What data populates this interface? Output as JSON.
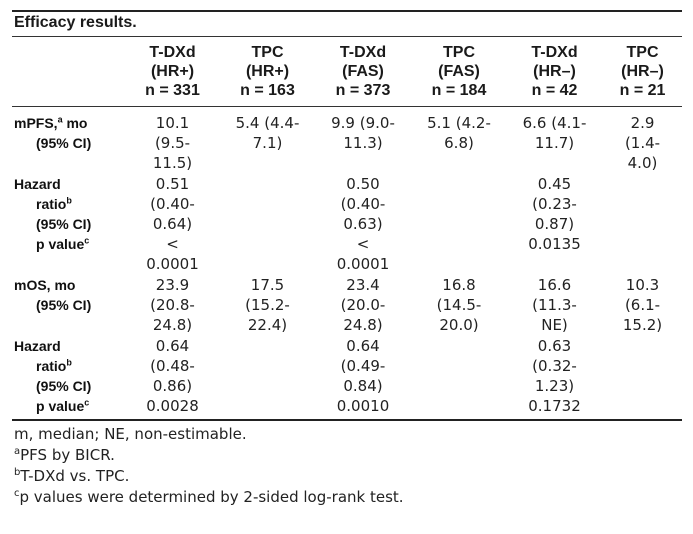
{
  "title": "Efficacy results.",
  "columns": [
    {
      "arm": "T-DXd",
      "pop": "(HR+)",
      "n": "n = 331"
    },
    {
      "arm": "TPC",
      "pop": "(HR+)",
      "n": "n = 163"
    },
    {
      "arm": "T-DXd",
      "pop": "(FAS)",
      "n": "n = 373"
    },
    {
      "arm": "TPC",
      "pop": "(FAS)",
      "n": "n = 184"
    },
    {
      "arm": "T-DXd",
      "pop": "(HR–)",
      "n": "n = 42"
    },
    {
      "arm": "TPC",
      "pop": "(HR–)",
      "n": "n = 21"
    }
  ],
  "rows": {
    "mpfs": {
      "label": "mPFS,",
      "label_sup": "a",
      "label_tail": " mo",
      "ci_label": "(95% CI)",
      "cells": [
        [
          "10.1",
          "(9.5-",
          "11.5)"
        ],
        [
          "5.4 (4.4-",
          "7.1)"
        ],
        [
          "9.9 (9.0-",
          "11.3)"
        ],
        [
          "5.1 (4.2-",
          "6.8)"
        ],
        [
          "6.6 (4.1-",
          "11.7)"
        ],
        [
          "2.9",
          "(1.4-",
          "4.0)"
        ]
      ]
    },
    "hr_pfs": {
      "label": "Hazard",
      "ratio": "ratio",
      "ratio_sup": "b",
      "ci_label": "(95% CI)",
      "p": "p value",
      "p_sup": "c",
      "cells": [
        [
          "0.51",
          "(0.40-",
          "0.64)",
          "<",
          "0.0001"
        ],
        [],
        [
          "0.50",
          "(0.40-",
          "0.63)",
          "<",
          "0.0001"
        ],
        [],
        [
          "0.45",
          "(0.23-",
          "0.87)",
          "0.0135"
        ],
        []
      ]
    },
    "mos": {
      "label": "mOS, mo",
      "ci_label": "(95% CI)",
      "cells": [
        [
          "23.9",
          "(20.8-",
          "24.8)"
        ],
        [
          "17.5",
          "(15.2-",
          "22.4)"
        ],
        [
          "23.4",
          "(20.0-",
          "24.8)"
        ],
        [
          "16.8",
          "(14.5-",
          "20.0)"
        ],
        [
          "16.6",
          "(11.3-",
          "NE)"
        ],
        [
          "10.3",
          "(6.1-",
          "15.2)"
        ]
      ]
    },
    "hr_os": {
      "label": "Hazard",
      "ratio": "ratio",
      "ratio_sup": "b",
      "ci_label": "(95% CI)",
      "p": "p value",
      "p_sup": "c",
      "cells": [
        [
          "0.64",
          "(0.48-",
          "0.86)",
          "0.0028"
        ],
        [],
        [
          "0.64",
          "(0.49-",
          "0.84)",
          "0.0010"
        ],
        [],
        [
          "0.63",
          "(0.32-",
          "1.23)",
          "0.1732"
        ],
        []
      ]
    }
  },
  "footnotes": [
    {
      "sup": "",
      "text": "m, median; NE, non-estimable."
    },
    {
      "sup": "a",
      "text": "PFS by BICR."
    },
    {
      "sup": "b",
      "text": "T-DXd vs. TPC."
    },
    {
      "sup": "c",
      "text": "p values were determined by 2-sided log-rank test."
    }
  ]
}
